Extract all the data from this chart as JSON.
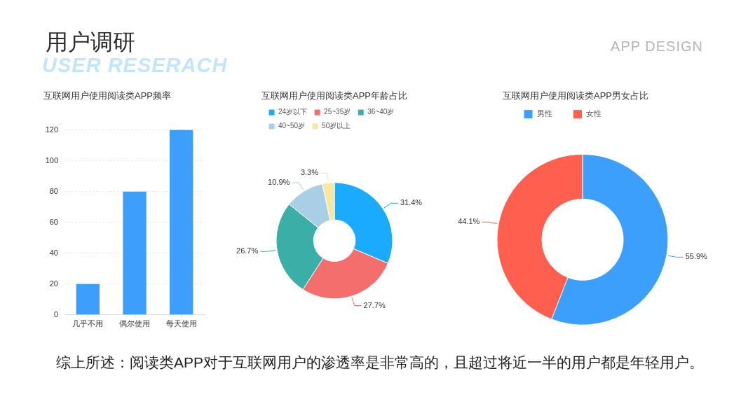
{
  "chart_data": [
    {
      "type": "other",
      "title": "用户调研",
      "subtitle": "USER RESERACH",
      "annotations": [
        "APP DESIGN"
      ]
    },
    {
      "type": "bar",
      "title": "互联网用户使用阅读类APP频率",
      "categories": [
        "几乎不用",
        "偶尔使用",
        "每天使用"
      ],
      "values": [
        20,
        80,
        120
      ],
      "color": "#3d9efc",
      "ylim": [
        0,
        120
      ],
      "yticks": [
        0,
        20,
        40,
        60,
        80,
        100,
        120
      ],
      "grid": "y"
    },
    {
      "type": "donut",
      "title": "互联网用户使用阅读类APP年龄占比",
      "categories": [
        "24岁以下",
        "25~35岁",
        "36~40岁",
        "40~50岁",
        "50岁以上"
      ],
      "values": [
        31.4,
        27.7,
        26.7,
        10.9,
        3.3
      ],
      "colors": [
        "#1aabff",
        "#f56e6e",
        "#3aaea7",
        "#a8cfe5",
        "#f7e7a1"
      ],
      "value_labels": [
        "31.4%",
        "27.7%",
        "26.7%",
        "10.9%",
        "3.3%"
      ],
      "legend": "top left"
    },
    {
      "type": "donut",
      "title": "互联网用户使用阅读类APP男女占比",
      "categories": [
        "男性",
        "女性"
      ],
      "values": [
        55.9,
        44.1
      ],
      "colors": [
        "#3d9ffc",
        "#ff5f4f"
      ],
      "value_labels": [
        "55.9%",
        "44.1%"
      ],
      "legend": "top left"
    },
    {
      "type": "other",
      "annotations": [
        "综上所述：阅读类APP对于互联网用户的渗透率是非常高的，且超过将近一半的用户都是年轻用户。"
      ]
    }
  ]
}
